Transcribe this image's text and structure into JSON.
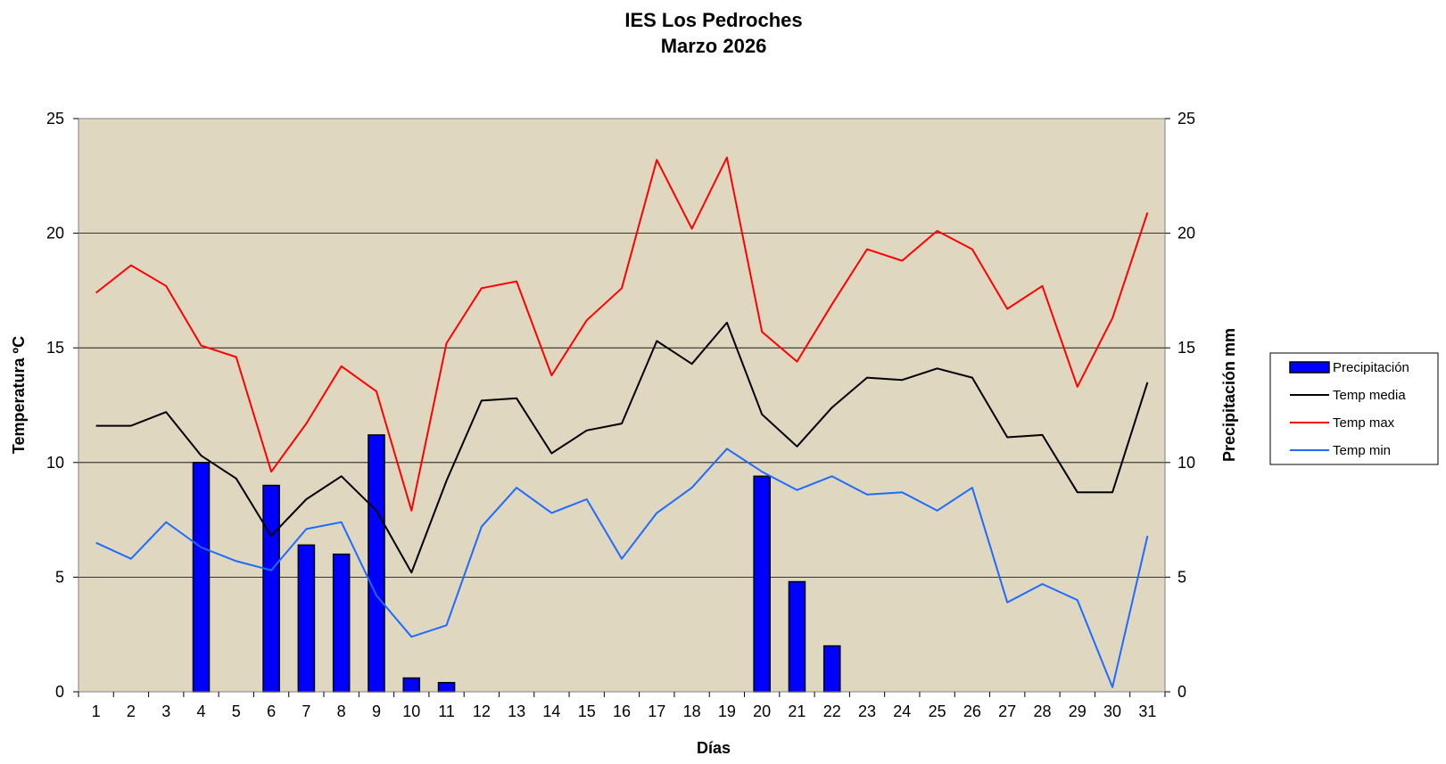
{
  "chart_data": {
    "type": "bar",
    "title": "IES Los Pedroches",
    "subtitle": "Marzo 2026",
    "xlabel": "Días",
    "ylabel": "Temperatura ºC",
    "y2label": "Precipitación mm",
    "categories": [
      "1",
      "2",
      "3",
      "4",
      "5",
      "6",
      "7",
      "8",
      "9",
      "10",
      "11",
      "12",
      "13",
      "14",
      "15",
      "16",
      "17",
      "18",
      "19",
      "20",
      "21",
      "22",
      "23",
      "24",
      "25",
      "26",
      "27",
      "28",
      "29",
      "30",
      "31"
    ],
    "ylim": [
      0,
      25
    ],
    "y2lim": [
      0,
      25
    ],
    "yticks": [
      "0",
      "5",
      "10",
      "15",
      "20",
      "25"
    ],
    "y2ticks": [
      "0",
      "5",
      "10",
      "15",
      "20",
      "25"
    ],
    "grid": true,
    "legend_position": "right",
    "plot_background": "#DFD7C0",
    "series": [
      {
        "name": "Precipitación",
        "type": "bar",
        "color": "#0000FF",
        "values": [
          0,
          0,
          0,
          10,
          0,
          9,
          6.4,
          6,
          11.2,
          0.6,
          0.4,
          0,
          0,
          0,
          0,
          0,
          0,
          0,
          0,
          9.4,
          4.8,
          2,
          0,
          0,
          0,
          0,
          0,
          0,
          0,
          0,
          0
        ]
      },
      {
        "name": "Temp media",
        "type": "line",
        "color": "#000000",
        "values": [
          11.6,
          11.6,
          12.2,
          10.3,
          9.3,
          6.8,
          8.4,
          9.4,
          7.9,
          5.2,
          9.2,
          12.7,
          12.8,
          10.4,
          11.4,
          11.7,
          15.3,
          14.3,
          16.1,
          12.1,
          10.7,
          12.4,
          13.7,
          13.6,
          14.1,
          13.7,
          11.1,
          11.2,
          8.7,
          8.7,
          13.5
        ]
      },
      {
        "name": "Temp max",
        "type": "line",
        "color": "#FF0000",
        "values": [
          17.4,
          18.6,
          17.7,
          15.1,
          14.6,
          9.6,
          11.7,
          14.2,
          13.1,
          7.9,
          15.2,
          17.6,
          17.9,
          13.8,
          16.2,
          17.6,
          23.2,
          20.2,
          23.3,
          15.7,
          14.4,
          16.9,
          19.3,
          18.8,
          20.1,
          19.3,
          16.7,
          17.7,
          13.3,
          16.3,
          20.9
        ]
      },
      {
        "name": "Temp min",
        "type": "line",
        "color": "#1E6BFF",
        "values": [
          6.5,
          5.8,
          7.4,
          6.3,
          5.7,
          5.3,
          7.1,
          7.4,
          4.2,
          2.4,
          2.9,
          7.2,
          8.9,
          7.8,
          8.4,
          5.8,
          7.8,
          8.9,
          10.6,
          9.6,
          8.8,
          9.4,
          8.6,
          8.7,
          7.9,
          8.9,
          3.9,
          4.7,
          4.0,
          0.2,
          6.8
        ]
      }
    ]
  }
}
